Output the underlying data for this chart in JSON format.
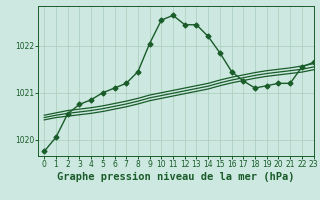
{
  "title": "Graphe pression niveau de la mer (hPa)",
  "background_color": "#cce8e0",
  "line_color": "#1a5c2a",
  "grid_color_major": "#aaccbb",
  "grid_color_minor": "#c4ddd6",
  "xlim": [
    -0.5,
    23
  ],
  "ylim": [
    1019.65,
    1022.85
  ],
  "yticks": [
    1020,
    1021,
    1022
  ],
  "xticks": [
    0,
    1,
    2,
    3,
    4,
    5,
    6,
    7,
    8,
    9,
    10,
    11,
    12,
    13,
    14,
    15,
    16,
    17,
    18,
    19,
    20,
    21,
    22,
    23
  ],
  "series": [
    {
      "x": [
        0,
        1,
        2,
        3,
        4,
        5,
        6,
        7,
        8,
        9,
        10,
        11,
        12,
        13,
        14,
        15,
        16,
        17,
        18,
        19,
        20,
        21,
        22,
        23
      ],
      "y": [
        1019.75,
        1020.05,
        1020.55,
        1020.75,
        1020.85,
        1021.0,
        1021.1,
        1021.2,
        1021.45,
        1022.05,
        1022.55,
        1022.65,
        1022.45,
        1022.45,
        1022.2,
        1021.85,
        1021.45,
        1021.25,
        1021.1,
        1021.15,
        1021.2,
        1021.2,
        1021.55,
        1021.65
      ],
      "marker": "D",
      "marker_size": 2.5,
      "linewidth": 1.0,
      "linestyle": "-"
    },
    {
      "x": [
        0,
        1,
        2,
        3,
        4,
        5,
        6,
        7,
        8,
        9,
        10,
        11,
        12,
        13,
        14,
        15,
        16,
        17,
        18,
        19,
        20,
        21,
        22,
        23
      ],
      "y": [
        1020.52,
        1020.57,
        1020.62,
        1020.65,
        1020.68,
        1020.72,
        1020.77,
        1020.82,
        1020.88,
        1020.95,
        1021.0,
        1021.05,
        1021.1,
        1021.15,
        1021.2,
        1021.27,
        1021.33,
        1021.38,
        1021.43,
        1021.47,
        1021.5,
        1021.53,
        1021.57,
        1021.62
      ],
      "marker": null,
      "linewidth": 0.9,
      "linestyle": "-"
    },
    {
      "x": [
        0,
        1,
        2,
        3,
        4,
        5,
        6,
        7,
        8,
        9,
        10,
        11,
        12,
        13,
        14,
        15,
        16,
        17,
        18,
        19,
        20,
        21,
        22,
        23
      ],
      "y": [
        1020.47,
        1020.52,
        1020.56,
        1020.59,
        1020.62,
        1020.66,
        1020.71,
        1020.76,
        1020.82,
        1020.89,
        1020.94,
        1020.99,
        1021.04,
        1021.09,
        1021.14,
        1021.21,
        1021.27,
        1021.32,
        1021.37,
        1021.41,
        1021.44,
        1021.47,
        1021.5,
        1021.55
      ],
      "marker": null,
      "linewidth": 0.9,
      "linestyle": "-"
    },
    {
      "x": [
        0,
        1,
        2,
        3,
        4,
        5,
        6,
        7,
        8,
        9,
        10,
        11,
        12,
        13,
        14,
        15,
        16,
        17,
        18,
        19,
        20,
        21,
        22,
        23
      ],
      "y": [
        1020.42,
        1020.47,
        1020.5,
        1020.53,
        1020.56,
        1020.6,
        1020.65,
        1020.7,
        1020.76,
        1020.83,
        1020.88,
        1020.93,
        1020.98,
        1021.03,
        1021.08,
        1021.15,
        1021.21,
        1021.26,
        1021.31,
        1021.35,
        1021.38,
        1021.41,
        1021.44,
        1021.49
      ],
      "marker": null,
      "linewidth": 0.9,
      "linestyle": "-"
    }
  ],
  "title_fontsize": 7.5,
  "tick_fontsize": 5.5,
  "tick_color": "#1a5c2a",
  "title_color": "#1a5c2a",
  "axis_color": "#1a5c2a",
  "figsize": [
    3.2,
    2.0
  ],
  "dpi": 100
}
